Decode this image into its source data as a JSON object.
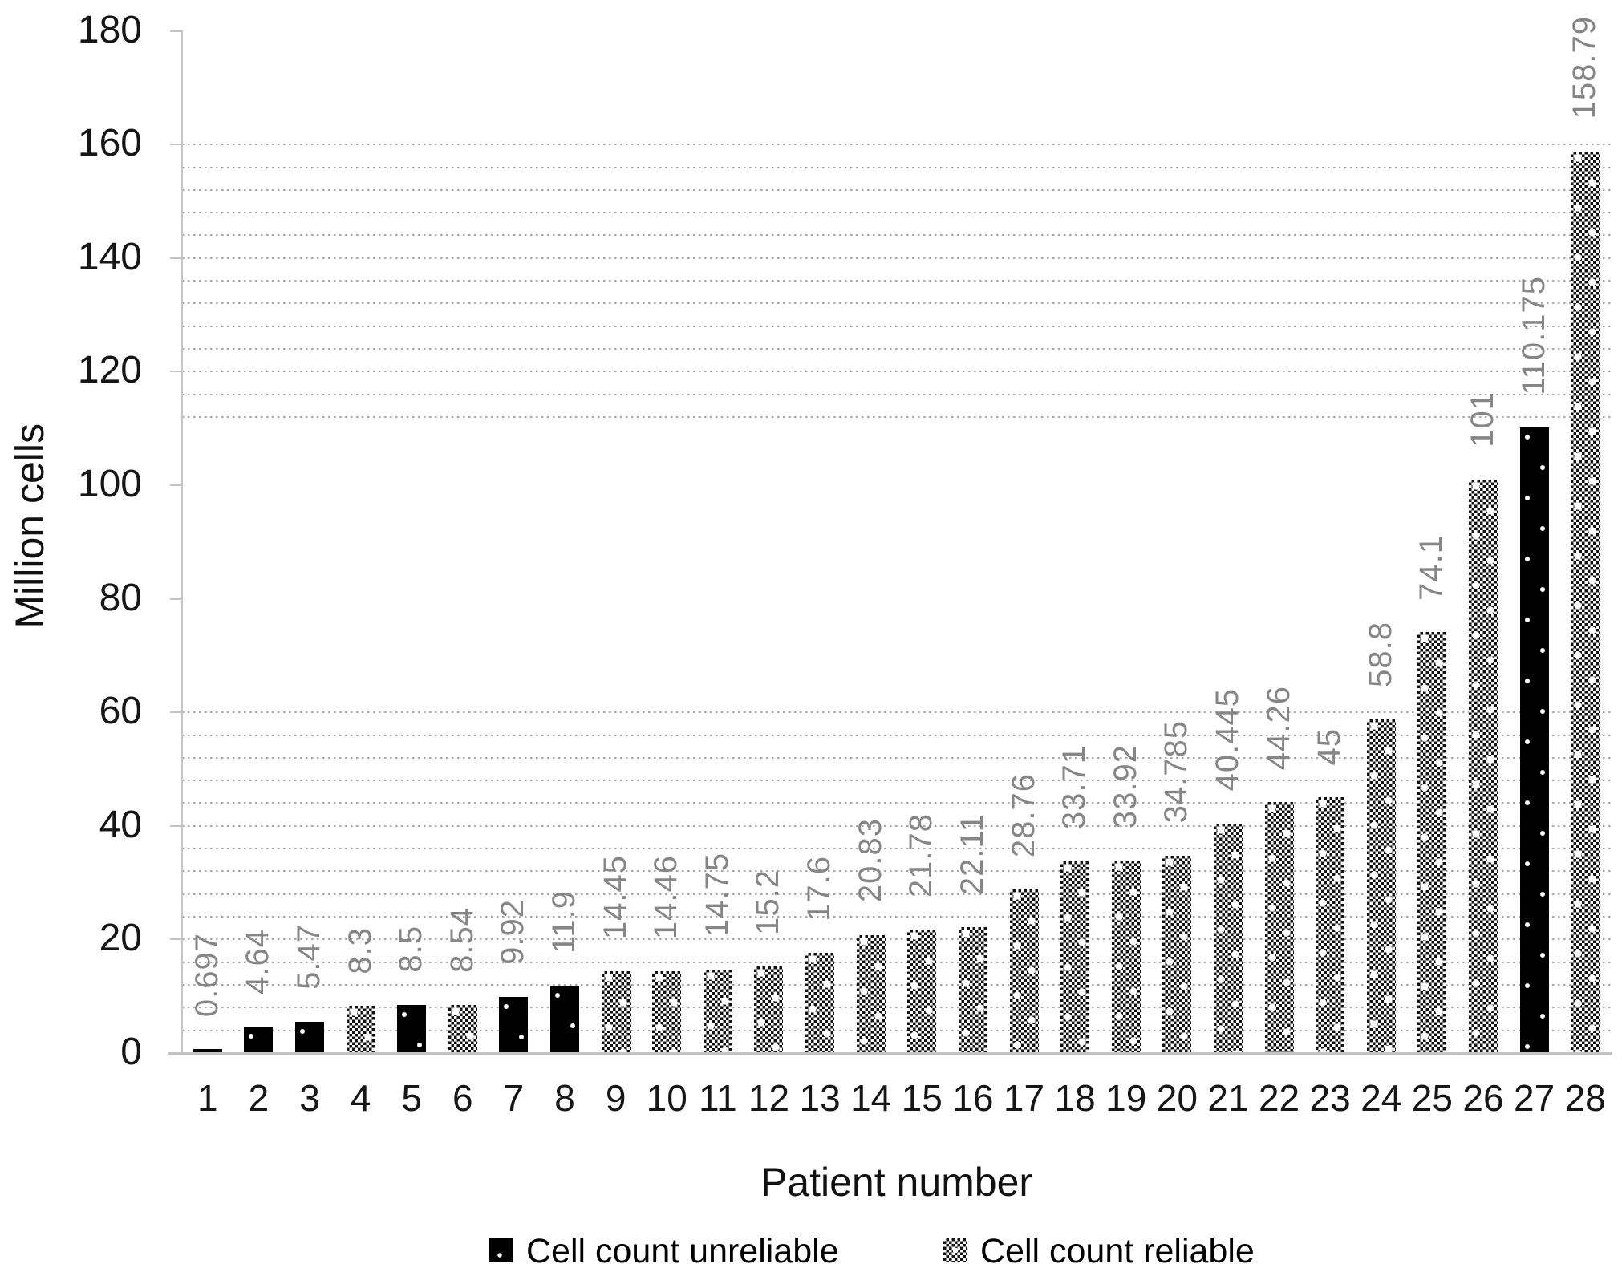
{
  "chart_data": {
    "type": "bar",
    "title": "",
    "xlabel": "Patient number",
    "ylabel": "Million cells",
    "ylim": [
      0,
      180
    ],
    "yticks": [
      0,
      20,
      40,
      60,
      80,
      100,
      120,
      140,
      160,
      180
    ],
    "grid": {
      "style": "dotted",
      "minor_step": 4,
      "visible_value_bands": [
        [
          4,
          60
        ],
        [
          112,
          160
        ]
      ]
    },
    "categories": [
      1,
      2,
      3,
      4,
      5,
      6,
      7,
      8,
      9,
      10,
      11,
      12,
      13,
      14,
      15,
      16,
      17,
      18,
      19,
      20,
      21,
      22,
      23,
      24,
      25,
      26,
      27,
      28
    ],
    "series": [
      {
        "name": "Cell count unreliable",
        "pattern": "white-dots-on-black",
        "patients": [
          1,
          2,
          3,
          5,
          7,
          8,
          27
        ]
      },
      {
        "name": "Cell count reliable",
        "pattern": "dotted-diamond-checker",
        "patients": [
          4,
          6,
          9,
          10,
          11,
          12,
          13,
          14,
          15,
          16,
          17,
          18,
          19,
          20,
          21,
          22,
          23,
          24,
          25,
          26,
          28
        ]
      }
    ],
    "bars": [
      {
        "patient": 1,
        "value": 0.697,
        "label": "0.697",
        "series": "unreliable"
      },
      {
        "patient": 2,
        "value": 4.64,
        "label": "4.64",
        "series": "unreliable"
      },
      {
        "patient": 3,
        "value": 5.47,
        "label": "5.47",
        "series": "unreliable"
      },
      {
        "patient": 4,
        "value": 8.3,
        "label": "8.3",
        "series": "reliable"
      },
      {
        "patient": 5,
        "value": 8.5,
        "label": "8.5",
        "series": "unreliable"
      },
      {
        "patient": 6,
        "value": 8.54,
        "label": "8.54",
        "series": "reliable"
      },
      {
        "patient": 7,
        "value": 9.92,
        "label": "9.92",
        "series": "unreliable"
      },
      {
        "patient": 8,
        "value": 11.9,
        "label": "11.9",
        "series": "unreliable"
      },
      {
        "patient": 9,
        "value": 14.45,
        "label": "14.45",
        "series": "reliable"
      },
      {
        "patient": 10,
        "value": 14.46,
        "label": "14.46",
        "series": "reliable"
      },
      {
        "patient": 11,
        "value": 14.75,
        "label": "14.75",
        "series": "reliable"
      },
      {
        "patient": 12,
        "value": 15.2,
        "label": "15.2",
        "series": "reliable"
      },
      {
        "patient": 13,
        "value": 17.6,
        "label": "17.6",
        "series": "reliable"
      },
      {
        "patient": 14,
        "value": 20.83,
        "label": "20.83",
        "series": "reliable"
      },
      {
        "patient": 15,
        "value": 21.78,
        "label": "21.78",
        "series": "reliable"
      },
      {
        "patient": 16,
        "value": 22.11,
        "label": "22.11",
        "series": "reliable"
      },
      {
        "patient": 17,
        "value": 28.76,
        "label": "28.76",
        "series": "reliable"
      },
      {
        "patient": 18,
        "value": 33.71,
        "label": "33.71",
        "series": "reliable"
      },
      {
        "patient": 19,
        "value": 33.92,
        "label": "33.92",
        "series": "reliable"
      },
      {
        "patient": 20,
        "value": 34.785,
        "label": "34.785",
        "series": "reliable"
      },
      {
        "patient": 21,
        "value": 40.445,
        "label": "40.445",
        "series": "reliable"
      },
      {
        "patient": 22,
        "value": 44.26,
        "label": "44.26",
        "series": "reliable"
      },
      {
        "patient": 23,
        "value": 45,
        "label": "45",
        "series": "reliable"
      },
      {
        "patient": 24,
        "value": 58.8,
        "label": "58.8",
        "series": "reliable"
      },
      {
        "patient": 25,
        "value": 74.1,
        "label": "74.1",
        "series": "reliable"
      },
      {
        "patient": 26,
        "value": 101,
        "label": "101",
        "series": "reliable"
      },
      {
        "patient": 27,
        "value": 110.175,
        "label": "110.175",
        "series": "unreliable"
      },
      {
        "patient": 28,
        "value": 158.79,
        "label": "158.79",
        "series": "reliable"
      }
    ],
    "legend_position": "bottom"
  },
  "legend": {
    "items": [
      {
        "label": "Cell count unreliable",
        "swatch": "black-with-white-dots"
      },
      {
        "label": "Cell count reliable",
        "swatch": "dotted-diamond-checker"
      }
    ]
  },
  "colors": {
    "data_label": "#868686",
    "axis_text": "#161616",
    "axis_line": "#c3c3c3",
    "gridline": "#a6a6a6",
    "bar_fill": "#000000",
    "background": "#ffffff"
  }
}
